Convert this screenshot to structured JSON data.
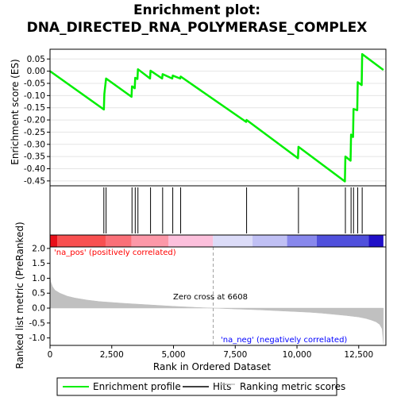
{
  "chart_data": [
    {
      "type": "line",
      "title": "Enrichment plot:\nDNA_DIRECTED_RNA_POLYMERASE_COMPLEX",
      "title_lines": [
        "Enrichment plot:",
        "DNA_DIRECTED_RNA_POLYMERASE_COMPLEX"
      ],
      "ylabel": "Enrichment score (ES)",
      "xlim": [
        0,
        13600
      ],
      "ylim": [
        -0.47,
        0.09
      ],
      "yticks": [
        0.05,
        0.0,
        -0.05,
        -0.1,
        -0.15,
        -0.2,
        -0.25,
        -0.3,
        -0.35,
        -0.4,
        -0.45
      ],
      "ytick_labels": [
        "0.05",
        "0.00",
        "-0.05",
        "-0.10",
        "-0.15",
        "-0.20",
        "-0.25",
        "-0.30",
        "-0.35",
        "-0.40",
        "-0.45"
      ],
      "grid": true,
      "series": [
        {
          "name": "Enrichment profile",
          "color": "#00ee00",
          "x": [
            0,
            2180,
            2200,
            2270,
            3300,
            3320,
            3430,
            3450,
            3540,
            3560,
            4050,
            4070,
            4540,
            4560,
            4950,
            4970,
            5270,
            5290,
            7940,
            7960,
            10040,
            10060,
            11940,
            11960,
            12170,
            12190,
            12270,
            12290,
            12440,
            12460,
            12620,
            12640,
            13500
          ],
          "y": [
            0.0,
            -0.157,
            -0.093,
            -0.03,
            -0.105,
            -0.062,
            -0.07,
            -0.027,
            -0.032,
            0.008,
            -0.03,
            0.002,
            -0.03,
            -0.012,
            -0.03,
            -0.018,
            -0.03,
            -0.022,
            -0.208,
            -0.2,
            -0.357,
            -0.31,
            -0.452,
            -0.35,
            -0.367,
            -0.26,
            -0.27,
            -0.155,
            -0.16,
            -0.045,
            -0.057,
            0.07,
            0.005
          ]
        }
      ]
    },
    {
      "type": "hits",
      "name": "Hits",
      "hit_positions": [
        2180,
        2270,
        3320,
        3450,
        3560,
        4070,
        4560,
        4970,
        5290,
        7960,
        10060,
        11960,
        12190,
        12290,
        12460,
        12640
      ]
    },
    {
      "type": "area",
      "name": "Ranking metric scores",
      "ylabel": "Ranked list metric (PreRanked)",
      "xlabel": "Rank in Ordered Dataset",
      "xlim": [
        0,
        13600
      ],
      "ylim": [
        -1.25,
        2.05
      ],
      "xticks": [
        0,
        2500,
        5000,
        7500,
        10000,
        12500
      ],
      "xtick_labels": [
        "0",
        "2,500",
        "5,000",
        "7,500",
        "10,000",
        "12,500"
      ],
      "yticks": [
        2.0,
        1.5,
        1.0,
        0.5,
        0.0,
        -0.5,
        -1.0
      ],
      "ytick_labels": [
        "2.0",
        "1.5",
        "1.0",
        "0.5",
        "0.0",
        "-0.5",
        "-1.0"
      ],
      "x": [
        0,
        30,
        100,
        200,
        400,
        700,
        1000,
        1500,
        2000,
        3000,
        4000,
        5000,
        6000,
        6608,
        7500,
        8500,
        9500,
        10500,
        11000,
        11500,
        12000,
        12500,
        12800,
        13000,
        13200,
        13350,
        13450,
        13500
      ],
      "y": [
        1.1,
        0.88,
        0.72,
        0.6,
        0.5,
        0.4,
        0.34,
        0.27,
        0.22,
        0.16,
        0.11,
        0.06,
        0.02,
        0.0,
        -0.03,
        -0.06,
        -0.1,
        -0.14,
        -0.17,
        -0.21,
        -0.25,
        -0.3,
        -0.35,
        -0.4,
        -0.46,
        -0.55,
        -0.7,
        -1.2
      ],
      "color": "#c0c0c0",
      "zero_cross": 6608,
      "annotations": [
        "'na_pos' (positively correlated)",
        "Zero cross at 6608",
        "'na_neg' (negatively correlated)"
      ]
    }
  ],
  "legend": {
    "items": [
      {
        "label": "Enrichment profile",
        "color": "#00ee00"
      },
      {
        "label": "Hits",
        "color": "#000000"
      },
      {
        "label": "Ranking metric scores",
        "color": "#c0c0c0"
      }
    ]
  },
  "colors": {
    "pos_label": "#ff0000",
    "neg_label": "#0000ff",
    "zero_line": "#a0a0a0"
  }
}
